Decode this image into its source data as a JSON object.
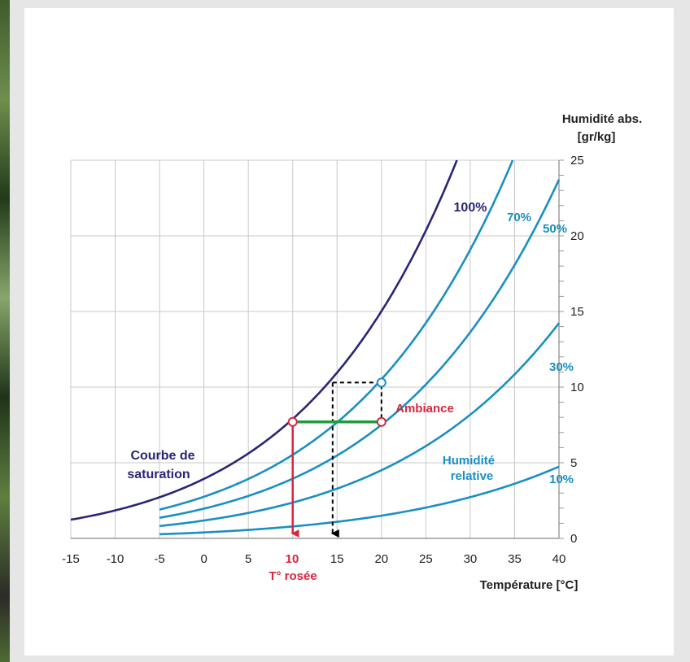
{
  "colors": {
    "saturation": "#2a2576",
    "relative": "#1a8fc2",
    "dew": "#d7263d",
    "cooling": "#1e9e3a",
    "grid": "#c8c8c8",
    "dashed": "#000000"
  },
  "chart_data": {
    "type": "line",
    "x_axis": {
      "label": "Température [°C]",
      "range": [
        -15,
        40
      ],
      "ticks": [
        -15,
        -10,
        -5,
        0,
        5,
        10,
        15,
        20,
        25,
        30,
        35,
        40
      ]
    },
    "y_axis": {
      "label_line1": "Humidité abs.",
      "label_line2": "[gr/kg]",
      "position": "right",
      "range": [
        0,
        25
      ],
      "ticks": [
        0,
        5,
        10,
        15,
        20,
        25
      ]
    },
    "grid": true,
    "series": [
      {
        "name": "100%",
        "rh": 1.0,
        "x_start": -15,
        "x": [
          -15,
          -10,
          -5,
          0,
          5,
          10,
          15,
          20,
          25,
          28.5
        ],
        "y": [
          1.0,
          1.6,
          2.5,
          3.8,
          5.5,
          7.7,
          10.5,
          14.5,
          20.0,
          25.0
        ]
      },
      {
        "name": "70%",
        "rh": 0.7,
        "x_start": -5,
        "x": [
          -5,
          0,
          5,
          10,
          15,
          20,
          25,
          30,
          35
        ],
        "y": [
          1.7,
          2.7,
          3.8,
          5.4,
          7.5,
          10.4,
          14.5,
          20.0,
          25.0
        ]
      },
      {
        "name": "50%",
        "rh": 0.5,
        "x_start": -5,
        "x": [
          -5,
          0,
          5,
          10,
          15,
          20,
          25,
          30,
          35,
          40
        ],
        "y": [
          1.2,
          1.9,
          2.7,
          3.9,
          5.3,
          7.4,
          10.3,
          14.3,
          19.5,
          24.0
        ]
      },
      {
        "name": "30%",
        "rh": 0.3,
        "x_start": -5,
        "x": [
          -5,
          0,
          5,
          10,
          15,
          20,
          25,
          30,
          35,
          40
        ],
        "y": [
          0.7,
          1.1,
          1.6,
          2.3,
          3.2,
          4.4,
          6.2,
          8.6,
          11.3,
          14.0
        ]
      },
      {
        "name": "10%",
        "rh": 0.1,
        "x_start": -5,
        "x": [
          -5,
          0,
          5,
          10,
          15,
          20,
          25,
          30,
          35,
          40
        ],
        "y": [
          0.25,
          0.4,
          0.55,
          0.77,
          1.05,
          1.45,
          2.0,
          2.7,
          3.5,
          4.0
        ]
      }
    ],
    "annotations": {
      "saturation_line1": "Courbe de",
      "saturation_line2": "saturation",
      "relative_line1": "Humidité",
      "relative_line2": "relative",
      "ambiance": "Ambiance",
      "dew_value": "10",
      "dew_label": "T° rosée"
    },
    "points": {
      "ambiance": {
        "x": 20,
        "y": 7.7
      },
      "dew": {
        "x": 10,
        "y": 7.7
      },
      "sat_at_20": {
        "x": 20,
        "y": 10.3
      },
      "dashed_left": {
        "x": 14.5,
        "y": 10.3
      }
    }
  }
}
